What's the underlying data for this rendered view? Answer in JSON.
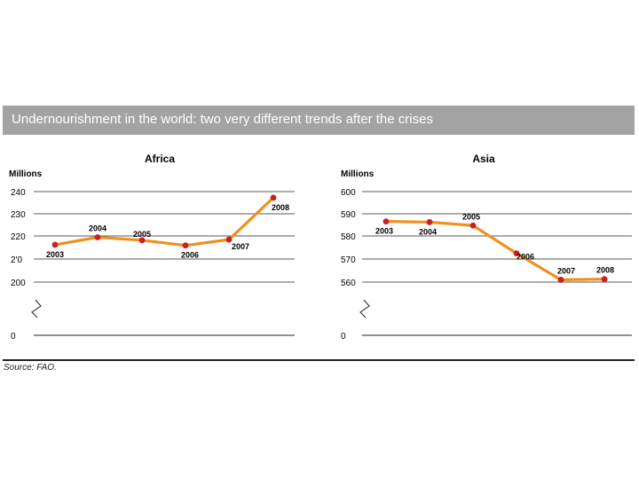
{
  "title": "Undernourishment in the world: two very different trends after the crises",
  "source": "Source: FAO.",
  "colors": {
    "line": "#f0901e",
    "point": "#cc1f1f",
    "title_bar": "#a3a3a3"
  },
  "chart_data": [
    {
      "type": "line",
      "title": "Africa",
      "ylabel": "Millions",
      "y_ticks": [
        "240",
        "230",
        "220",
        "2'0",
        "200",
        "0"
      ],
      "y_tick_values": [
        240,
        230,
        220,
        210,
        200,
        0
      ],
      "axis_break": true,
      "ylim": [
        200,
        240
      ],
      "x": [
        "2003",
        "2004",
        "2005",
        "2006",
        "2007",
        "2008"
      ],
      "values": [
        216.5,
        219.8,
        218.5,
        216.2,
        218.8,
        237.3
      ]
    },
    {
      "type": "line",
      "title": "Asia",
      "ylabel": "Millions",
      "y_ticks": [
        "600",
        "590",
        "580",
        "570",
        "560",
        "0"
      ],
      "y_tick_values": [
        600,
        590,
        580,
        570,
        560,
        0
      ],
      "axis_break": true,
      "ylim": [
        560,
        600
      ],
      "x": [
        "2003",
        "2004",
        "2005",
        "2006",
        "2007",
        "2008"
      ],
      "values": [
        586.8,
        586.5,
        585.0,
        572.7,
        561.0,
        561.3
      ]
    }
  ]
}
